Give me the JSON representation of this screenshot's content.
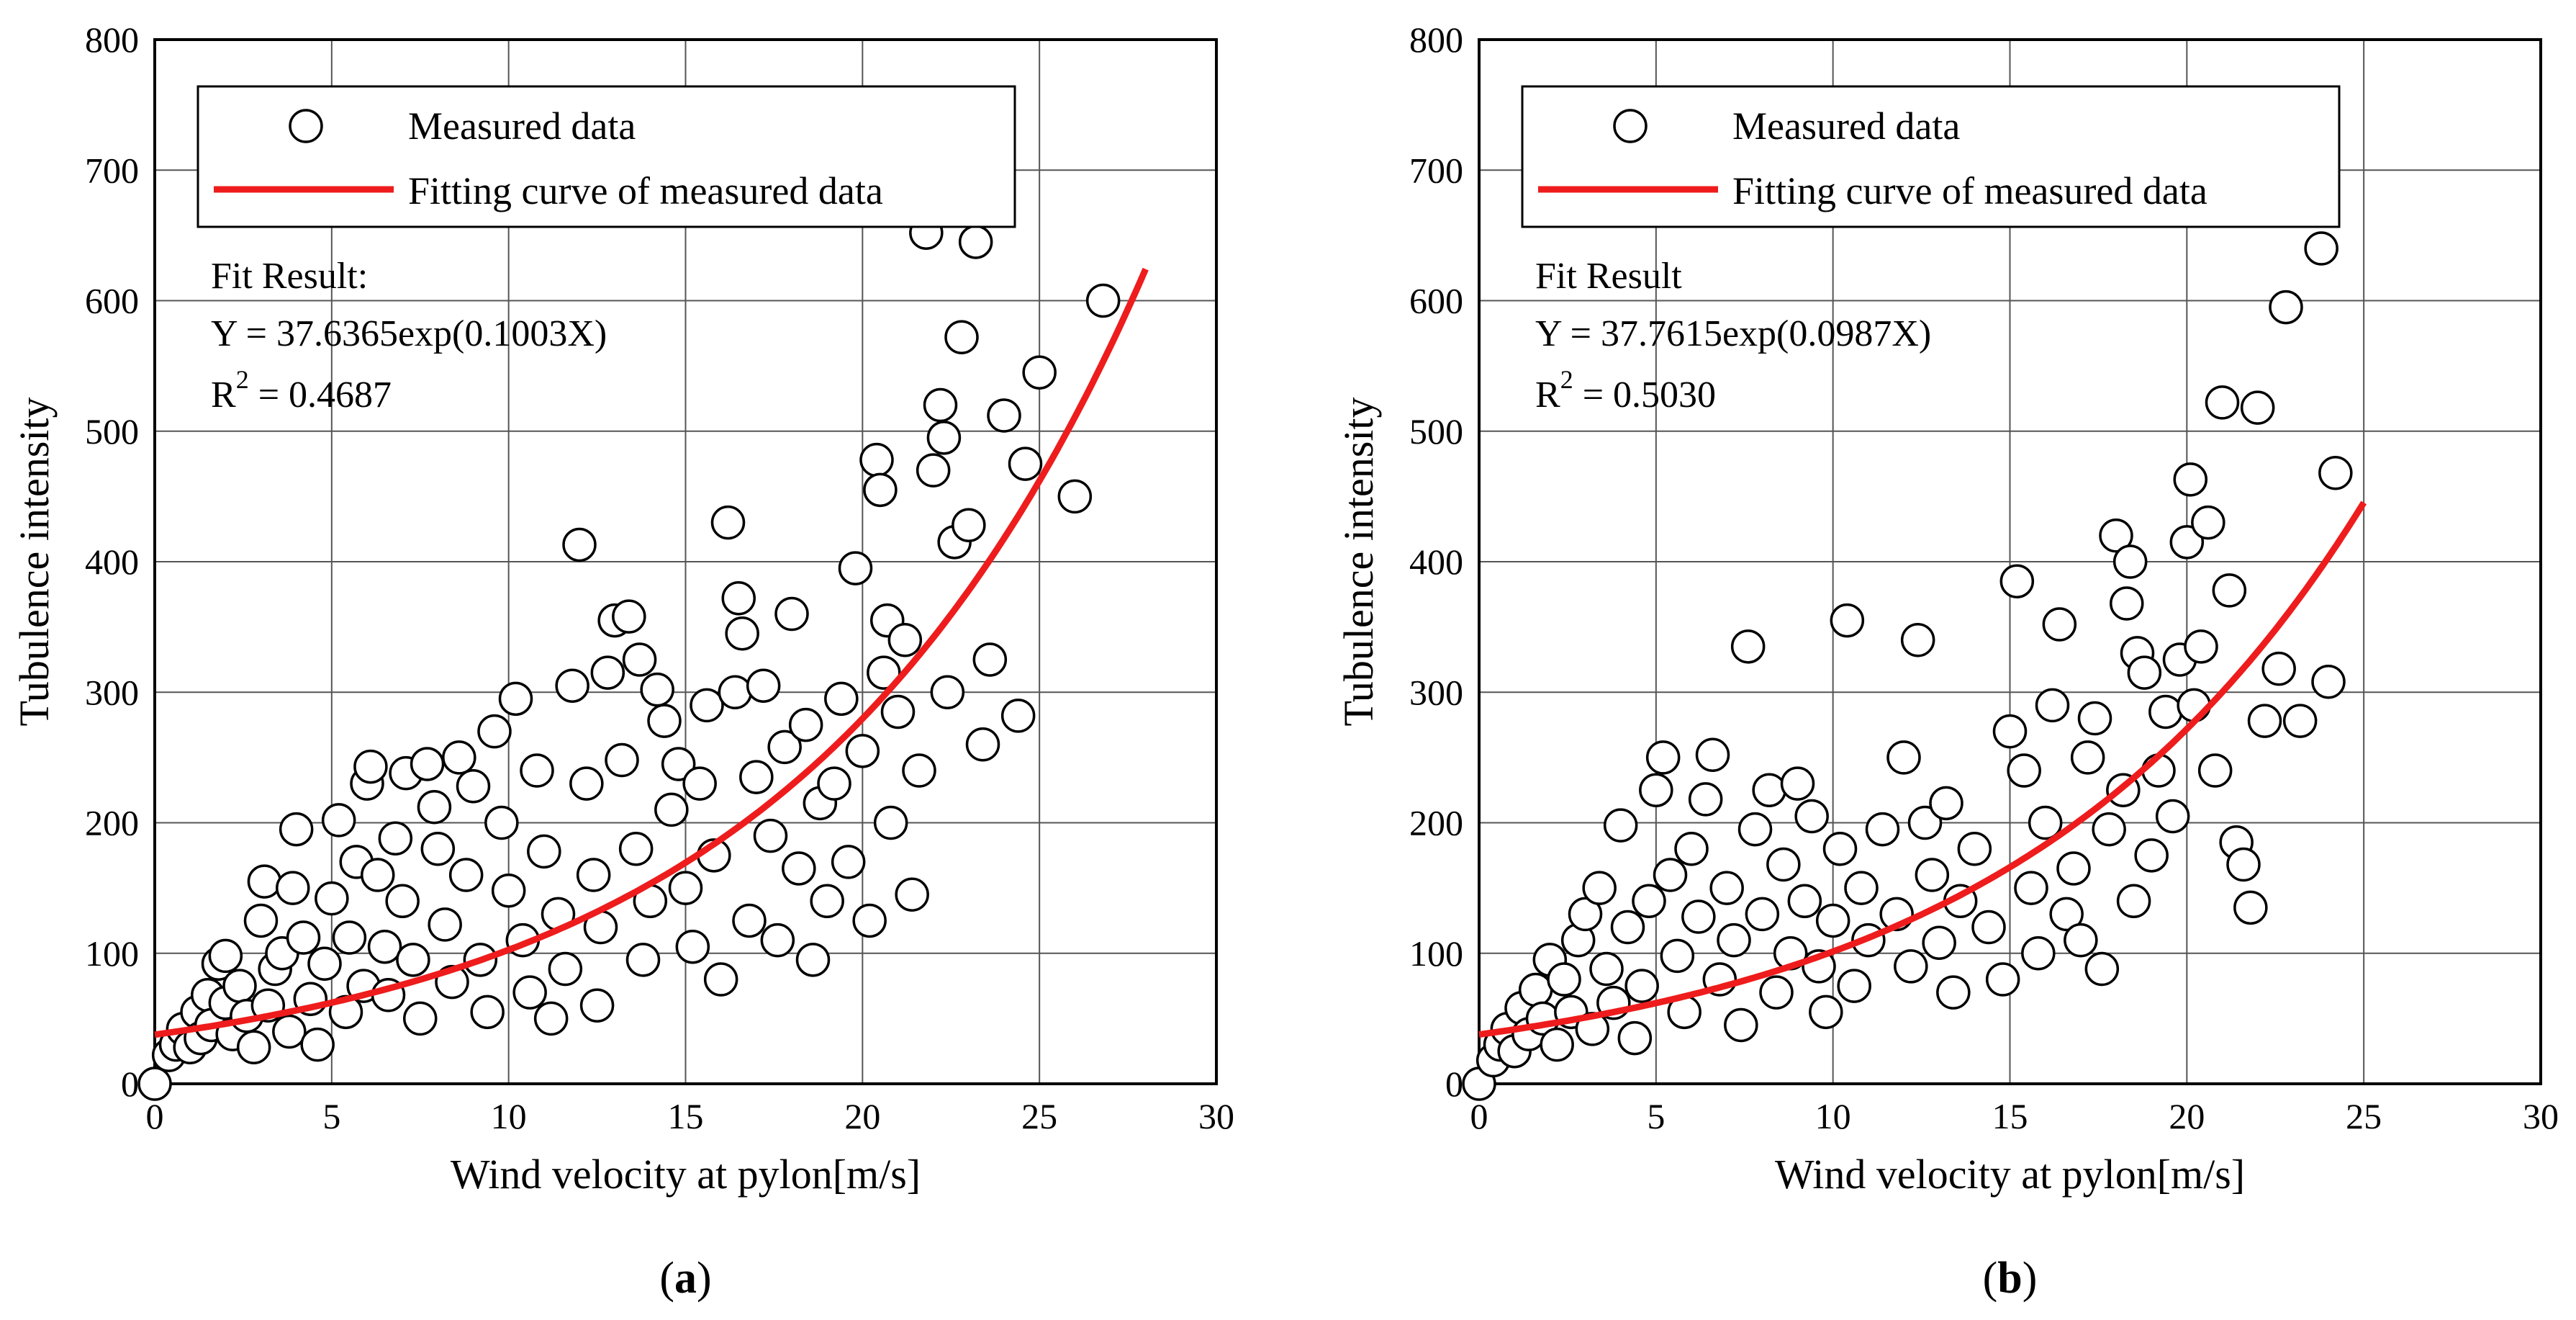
{
  "chart_data": [
    {
      "type": "scatter",
      "panel_label": "a",
      "xlabel": "Wind velocity at pylon[m/s]",
      "ylabel": "Tubulence intensity",
      "xlim": [
        0,
        30
      ],
      "ylim": [
        0,
        800
      ],
      "xticks": [
        0,
        5,
        10,
        15,
        20,
        25,
        30
      ],
      "yticks": [
        0,
        100,
        200,
        300,
        400,
        500,
        600,
        700,
        800
      ],
      "grid": true,
      "legend": {
        "position": "top-left",
        "entries": [
          "Measured data",
          "Fitting curve of measured data"
        ]
      },
      "fit_result": {
        "title": "Fit Result:",
        "equation": "Y = 37.6365exp(0.1003X)",
        "r2_label": "R",
        "r2_sup": "2",
        "r2_value": " = 0.4687"
      },
      "fit_curve": {
        "a": 37.6365,
        "b": 0.1003,
        "x_range": [
          0,
          28
        ],
        "color": "#ee1c1c"
      },
      "series": [
        {
          "name": "Measured data",
          "marker": "open-circle",
          "points": [
            [
              0.0,
              0
            ],
            [
              0.4,
              22
            ],
            [
              0.6,
              30
            ],
            [
              0.8,
              42
            ],
            [
              1.0,
              28
            ],
            [
              1.2,
              55
            ],
            [
              1.3,
              35
            ],
            [
              1.5,
              68
            ],
            [
              1.6,
              45
            ],
            [
              1.8,
              92
            ],
            [
              2.0,
              62
            ],
            [
              2.0,
              98
            ],
            [
              2.2,
              38
            ],
            [
              2.4,
              75
            ],
            [
              2.6,
              52
            ],
            [
              2.8,
              28
            ],
            [
              3.0,
              125
            ],
            [
              3.1,
              155
            ],
            [
              3.2,
              60
            ],
            [
              3.4,
              88
            ],
            [
              3.6,
              100
            ],
            [
              3.8,
              40
            ],
            [
              3.9,
              150
            ],
            [
              4.0,
              195
            ],
            [
              4.2,
              112
            ],
            [
              4.4,
              65
            ],
            [
              4.6,
              30
            ],
            [
              4.8,
              92
            ],
            [
              5.0,
              142
            ],
            [
              5.2,
              202
            ],
            [
              5.4,
              55
            ],
            [
              5.5,
              112
            ],
            [
              5.7,
              170
            ],
            [
              5.9,
              75
            ],
            [
              6.0,
              230
            ],
            [
              6.1,
              243
            ],
            [
              6.3,
              160
            ],
            [
              6.5,
              105
            ],
            [
              6.6,
              68
            ],
            [
              6.8,
              188
            ],
            [
              7.0,
              140
            ],
            [
              7.1,
              238
            ],
            [
              7.3,
              95
            ],
            [
              7.5,
              50
            ],
            [
              7.7,
              245
            ],
            [
              7.9,
              212
            ],
            [
              8.0,
              180
            ],
            [
              8.2,
              122
            ],
            [
              8.4,
              78
            ],
            [
              8.6,
              250
            ],
            [
              8.8,
              160
            ],
            [
              9.0,
              228
            ],
            [
              9.2,
              95
            ],
            [
              9.4,
              55
            ],
            [
              9.6,
              270
            ],
            [
              9.8,
              200
            ],
            [
              10.0,
              148
            ],
            [
              10.2,
              295
            ],
            [
              10.4,
              110
            ],
            [
              10.6,
              70
            ],
            [
              10.8,
              240
            ],
            [
              11.0,
              178
            ],
            [
              11.2,
              50
            ],
            [
              11.4,
              130
            ],
            [
              11.6,
              88
            ],
            [
              11.8,
              305
            ],
            [
              12.0,
              413
            ],
            [
              12.2,
              230
            ],
            [
              12.4,
              160
            ],
            [
              12.5,
              60
            ],
            [
              12.6,
              120
            ],
            [
              12.8,
              315
            ],
            [
              13.0,
              355
            ],
            [
              13.2,
              248
            ],
            [
              13.4,
              358
            ],
            [
              13.6,
              180
            ],
            [
              13.7,
              325
            ],
            [
              13.8,
              95
            ],
            [
              14.0,
              140
            ],
            [
              14.2,
              302
            ],
            [
              14.4,
              278
            ],
            [
              14.6,
              210
            ],
            [
              14.8,
              245
            ],
            [
              15.0,
              150
            ],
            [
              15.2,
              105
            ],
            [
              15.4,
              230
            ],
            [
              15.6,
              290
            ],
            [
              15.8,
              175
            ],
            [
              16.0,
              80
            ],
            [
              16.2,
              430
            ],
            [
              16.4,
              300
            ],
            [
              16.5,
              372
            ],
            [
              16.6,
              345
            ],
            [
              16.8,
              125
            ],
            [
              17.0,
              235
            ],
            [
              17.2,
              305
            ],
            [
              17.4,
              190
            ],
            [
              17.6,
              110
            ],
            [
              17.8,
              258
            ],
            [
              18.0,
              360
            ],
            [
              18.2,
              165
            ],
            [
              18.4,
              275
            ],
            [
              18.6,
              95
            ],
            [
              18.8,
              215
            ],
            [
              19.0,
              140
            ],
            [
              19.2,
              230
            ],
            [
              19.4,
              295
            ],
            [
              19.6,
              170
            ],
            [
              19.8,
              395
            ],
            [
              20.0,
              255
            ],
            [
              20.2,
              125
            ],
            [
              20.4,
              478
            ],
            [
              20.5,
              455
            ],
            [
              20.6,
              315
            ],
            [
              20.7,
              355
            ],
            [
              20.8,
              200
            ],
            [
              21.0,
              285
            ],
            [
              21.2,
              340
            ],
            [
              21.4,
              145
            ],
            [
              21.6,
              240
            ],
            [
              21.8,
              652
            ],
            [
              22.0,
              470
            ],
            [
              22.2,
              520
            ],
            [
              22.3,
              495
            ],
            [
              22.4,
              300
            ],
            [
              22.6,
              415
            ],
            [
              22.8,
              572
            ],
            [
              23.0,
              428
            ],
            [
              23.2,
              645
            ],
            [
              23.4,
              260
            ],
            [
              23.6,
              325
            ],
            [
              24.0,
              512
            ],
            [
              24.4,
              282
            ],
            [
              24.6,
              475
            ],
            [
              25.0,
              545
            ],
            [
              26.0,
              450
            ],
            [
              26.8,
              600
            ]
          ]
        }
      ]
    },
    {
      "type": "scatter",
      "panel_label": "b",
      "xlabel": "Wind velocity at pylon[m/s]",
      "ylabel": "Tubulence intensity",
      "xlim": [
        0,
        30
      ],
      "ylim": [
        0,
        800
      ],
      "xticks": [
        0,
        5,
        10,
        15,
        20,
        25,
        30
      ],
      "yticks": [
        0,
        100,
        200,
        300,
        400,
        500,
        600,
        700,
        800
      ],
      "grid": true,
      "legend": {
        "position": "top-left",
        "entries": [
          "Measured data",
          "Fitting curve of measured data"
        ]
      },
      "fit_result": {
        "title": "Fit Result",
        "equation": "Y = 37.7615exp(0.0987X)",
        "r2_label": "R",
        "r2_sup": "2",
        "r2_value": " = 0.5030"
      },
      "fit_curve": {
        "a": 37.7615,
        "b": 0.0987,
        "x_range": [
          0,
          25
        ],
        "color": "#ee1c1c"
      },
      "series": [
        {
          "name": "Measured data",
          "marker": "open-circle",
          "points": [
            [
              0.0,
              0
            ],
            [
              0.4,
              18
            ],
            [
              0.6,
              30
            ],
            [
              0.8,
              42
            ],
            [
              1.0,
              25
            ],
            [
              1.2,
              58
            ],
            [
              1.4,
              38
            ],
            [
              1.6,
              72
            ],
            [
              1.8,
              50
            ],
            [
              2.0,
              95
            ],
            [
              2.2,
              30
            ],
            [
              2.4,
              80
            ],
            [
              2.6,
              55
            ],
            [
              2.8,
              110
            ],
            [
              3.0,
              130
            ],
            [
              3.2,
              42
            ],
            [
              3.4,
              150
            ],
            [
              3.6,
              88
            ],
            [
              3.8,
              62
            ],
            [
              4.0,
              198
            ],
            [
              4.2,
              120
            ],
            [
              4.4,
              35
            ],
            [
              4.6,
              75
            ],
            [
              4.8,
              140
            ],
            [
              5.0,
              225
            ],
            [
              5.2,
              250
            ],
            [
              5.4,
              160
            ],
            [
              5.6,
              98
            ],
            [
              5.8,
              55
            ],
            [
              6.0,
              180
            ],
            [
              6.2,
              128
            ],
            [
              6.4,
              218
            ],
            [
              6.6,
              252
            ],
            [
              6.8,
              80
            ],
            [
              7.0,
              150
            ],
            [
              7.2,
              110
            ],
            [
              7.4,
              45
            ],
            [
              7.6,
              335
            ],
            [
              7.8,
              195
            ],
            [
              8.0,
              130
            ],
            [
              8.2,
              225
            ],
            [
              8.4,
              70
            ],
            [
              8.6,
              168
            ],
            [
              8.8,
              100
            ],
            [
              9.0,
              230
            ],
            [
              9.2,
              140
            ],
            [
              9.4,
              205
            ],
            [
              9.6,
              90
            ],
            [
              9.8,
              55
            ],
            [
              10.0,
              125
            ],
            [
              10.2,
              180
            ],
            [
              10.4,
              355
            ],
            [
              10.6,
              75
            ],
            [
              10.8,
              150
            ],
            [
              11.0,
              110
            ],
            [
              11.4,
              195
            ],
            [
              11.8,
              130
            ],
            [
              12.0,
              250
            ],
            [
              12.2,
              90
            ],
            [
              12.4,
              340
            ],
            [
              12.6,
              200
            ],
            [
              12.8,
              160
            ],
            [
              13.0,
              108
            ],
            [
              13.2,
              215
            ],
            [
              13.4,
              70
            ],
            [
              13.6,
              140
            ],
            [
              14.0,
              180
            ],
            [
              14.4,
              120
            ],
            [
              14.8,
              80
            ],
            [
              15.0,
              270
            ],
            [
              15.2,
              385
            ],
            [
              15.4,
              240
            ],
            [
              15.6,
              150
            ],
            [
              15.8,
              100
            ],
            [
              16.0,
              200
            ],
            [
              16.2,
              290
            ],
            [
              16.4,
              352
            ],
            [
              16.6,
              130
            ],
            [
              16.8,
              165
            ],
            [
              17.0,
              110
            ],
            [
              17.2,
              250
            ],
            [
              17.4,
              280
            ],
            [
              17.6,
              88
            ],
            [
              17.8,
              195
            ],
            [
              18.0,
              420
            ],
            [
              18.2,
              225
            ],
            [
              18.3,
              368
            ],
            [
              18.4,
              400
            ],
            [
              18.5,
              140
            ],
            [
              18.6,
              330
            ],
            [
              18.8,
              315
            ],
            [
              19.0,
              175
            ],
            [
              19.2,
              240
            ],
            [
              19.4,
              285
            ],
            [
              19.6,
              205
            ],
            [
              19.8,
              325
            ],
            [
              20.0,
              415
            ],
            [
              20.1,
              463
            ],
            [
              20.2,
              290
            ],
            [
              20.4,
              335
            ],
            [
              20.6,
              430
            ],
            [
              20.8,
              240
            ],
            [
              21.0,
              522
            ],
            [
              21.2,
              378
            ],
            [
              21.4,
              185
            ],
            [
              21.6,
              168
            ],
            [
              21.8,
              135
            ],
            [
              22.0,
              518
            ],
            [
              22.2,
              278
            ],
            [
              22.6,
              318
            ],
            [
              22.8,
              595
            ],
            [
              23.2,
              278
            ],
            [
              23.8,
              640
            ],
            [
              24.0,
              308
            ],
            [
              24.2,
              468
            ]
          ]
        }
      ]
    }
  ]
}
